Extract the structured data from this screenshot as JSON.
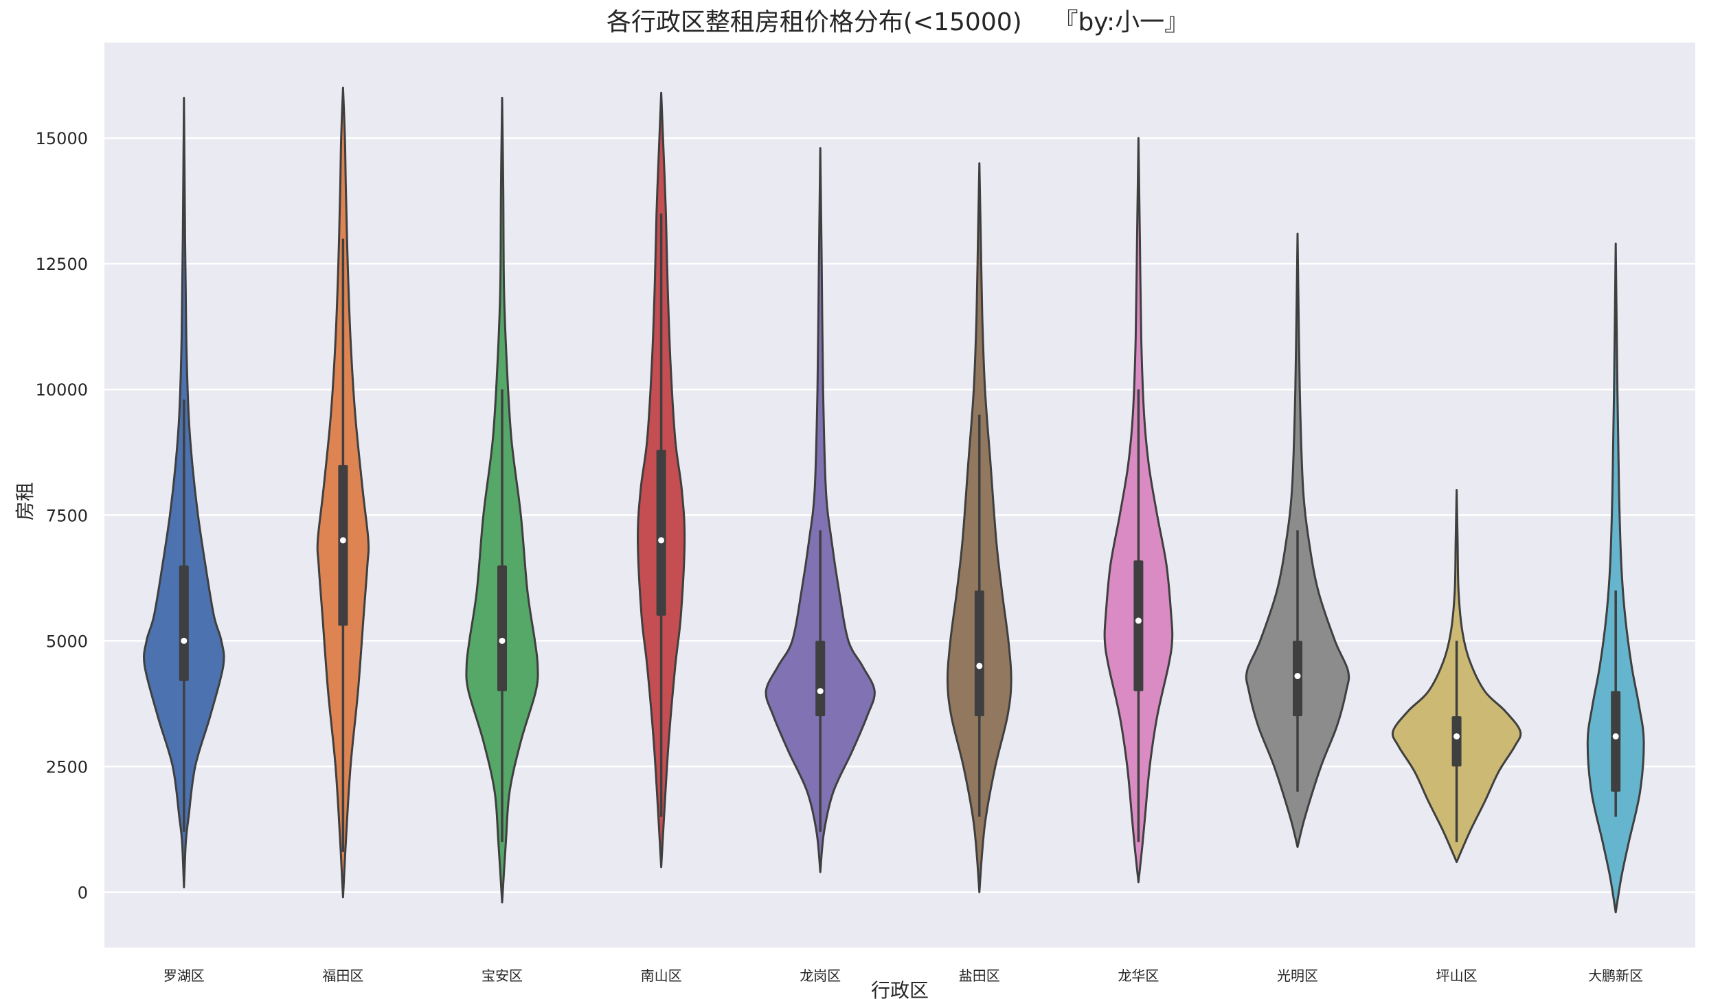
{
  "chart_data": {
    "type": "violin",
    "title": "各行政区整租房租价格分布(<15000)    『by:小一』",
    "xlabel": "行政区",
    "ylabel": "房租",
    "ylim": [
      -1100,
      16900
    ],
    "yticks": [
      0,
      2500,
      5000,
      7500,
      10000,
      12500,
      15000
    ],
    "grid": true,
    "legend": "none",
    "categories": [
      "罗湖区",
      "福田区",
      "宝安区",
      "南山区",
      "龙岗区",
      "盐田区",
      "龙华区",
      "光明区",
      "坪山区",
      "大鹏新区"
    ],
    "colors": [
      "#4c72b0",
      "#dd8452",
      "#55a868",
      "#c44e52",
      "#8172b3",
      "#937860",
      "#da8bc3",
      "#8c8c8c",
      "#ccb974",
      "#64b5cd"
    ],
    "series": [
      {
        "category": "罗湖区",
        "min": 100,
        "max": 15800,
        "q1": 4200,
        "median": 5000,
        "q3": 6500,
        "whisker_low": 1200,
        "whisker_high": 9800,
        "density": [
          [
            100,
            0.01
          ],
          [
            1000,
            0.02
          ],
          [
            1500,
            0.05
          ],
          [
            2500,
            0.12
          ],
          [
            3500,
            0.28
          ],
          [
            4500,
            0.42
          ],
          [
            5000,
            0.4
          ],
          [
            5500,
            0.32
          ],
          [
            6500,
            0.23
          ],
          [
            7500,
            0.15
          ],
          [
            8500,
            0.09
          ],
          [
            9500,
            0.05
          ],
          [
            11000,
            0.025
          ],
          [
            13000,
            0.012
          ],
          [
            15800,
            0.005
          ]
        ]
      },
      {
        "category": "福田区",
        "min": -100,
        "max": 16000,
        "q1": 5300,
        "median": 7000,
        "q3": 8500,
        "whisker_low": 800,
        "whisker_high": 13000,
        "density": [
          [
            -100,
            0.005
          ],
          [
            1000,
            0.03
          ],
          [
            2500,
            0.08
          ],
          [
            4000,
            0.16
          ],
          [
            5500,
            0.22
          ],
          [
            6500,
            0.26
          ],
          [
            7000,
            0.27
          ],
          [
            8000,
            0.21
          ],
          [
            9500,
            0.13
          ],
          [
            11000,
            0.08
          ],
          [
            12500,
            0.05
          ],
          [
            14000,
            0.03
          ],
          [
            15000,
            0.02
          ],
          [
            16000,
            0.005
          ]
        ]
      },
      {
        "category": "宝安区",
        "min": -200,
        "max": 15800,
        "q1": 4000,
        "median": 5000,
        "q3": 6500,
        "whisker_low": 1000,
        "whisker_high": 10000,
        "density": [
          [
            -200,
            0.005
          ],
          [
            1000,
            0.04
          ],
          [
            2000,
            0.08
          ],
          [
            3000,
            0.2
          ],
          [
            4000,
            0.36
          ],
          [
            4500,
            0.38
          ],
          [
            5000,
            0.35
          ],
          [
            6000,
            0.27
          ],
          [
            7500,
            0.2
          ],
          [
            9000,
            0.1
          ],
          [
            10500,
            0.05
          ],
          [
            12000,
            0.02
          ],
          [
            14000,
            0.012
          ],
          [
            15800,
            0.005
          ]
        ]
      },
      {
        "category": "南山区",
        "min": 500,
        "max": 15900,
        "q1": 5500,
        "median": 7000,
        "q3": 8800,
        "whisker_low": 1500,
        "whisker_high": 13500,
        "density": [
          [
            500,
            0.01
          ],
          [
            1500,
            0.03
          ],
          [
            3000,
            0.08
          ],
          [
            4500,
            0.15
          ],
          [
            5500,
            0.21
          ],
          [
            7000,
            0.25
          ],
          [
            8000,
            0.22
          ],
          [
            9000,
            0.15
          ],
          [
            10500,
            0.1
          ],
          [
            12000,
            0.07
          ],
          [
            13500,
            0.05
          ],
          [
            14500,
            0.03
          ],
          [
            15900,
            0.005
          ]
        ]
      },
      {
        "category": "龙岗区",
        "min": 400,
        "max": 14800,
        "q1": 3500,
        "median": 4000,
        "q3": 5000,
        "whisker_low": 1200,
        "whisker_high": 7200,
        "density": [
          [
            400,
            0.01
          ],
          [
            1200,
            0.04
          ],
          [
            2000,
            0.14
          ],
          [
            2800,
            0.34
          ],
          [
            3500,
            0.5
          ],
          [
            4000,
            0.58
          ],
          [
            4500,
            0.45
          ],
          [
            5000,
            0.3
          ],
          [
            6000,
            0.2
          ],
          [
            7000,
            0.12
          ],
          [
            8000,
            0.06
          ],
          [
            10000,
            0.03
          ],
          [
            12500,
            0.015
          ],
          [
            14800,
            0.005
          ]
        ]
      },
      {
        "category": "盐田区",
        "min": 0,
        "max": 14500,
        "q1": 3500,
        "median": 4500,
        "q3": 6000,
        "whisker_low": 1500,
        "whisker_high": 9500,
        "density": [
          [
            0,
            0.005
          ],
          [
            800,
            0.03
          ],
          [
            1500,
            0.07
          ],
          [
            2500,
            0.17
          ],
          [
            3500,
            0.3
          ],
          [
            4200,
            0.34
          ],
          [
            5000,
            0.31
          ],
          [
            6000,
            0.24
          ],
          [
            7000,
            0.18
          ],
          [
            8500,
            0.12
          ],
          [
            10000,
            0.06
          ],
          [
            11500,
            0.03
          ],
          [
            13000,
            0.015
          ],
          [
            14500,
            0.005
          ]
        ]
      },
      {
        "category": "龙华区",
        "min": 200,
        "max": 15000,
        "q1": 4000,
        "median": 5400,
        "q3": 6600,
        "whisker_low": 1000,
        "whisker_high": 10000,
        "density": [
          [
            200,
            0.01
          ],
          [
            900,
            0.04
          ],
          [
            1500,
            0.07
          ],
          [
            2500,
            0.12
          ],
          [
            3500,
            0.2
          ],
          [
            4500,
            0.32
          ],
          [
            5000,
            0.36
          ],
          [
            5500,
            0.35
          ],
          [
            6500,
            0.3
          ],
          [
            7500,
            0.2
          ],
          [
            8500,
            0.11
          ],
          [
            9500,
            0.06
          ],
          [
            11000,
            0.03
          ],
          [
            13000,
            0.015
          ],
          [
            15000,
            0.005
          ]
        ]
      },
      {
        "category": "光明区",
        "min": 900,
        "max": 13100,
        "q1": 3500,
        "median": 4300,
        "q3": 5000,
        "whisker_low": 2000,
        "whisker_high": 7200,
        "density": [
          [
            900,
            0.02
          ],
          [
            1500,
            0.08
          ],
          [
            2500,
            0.25
          ],
          [
            3300,
            0.42
          ],
          [
            4000,
            0.52
          ],
          [
            4400,
            0.54
          ],
          [
            5000,
            0.4
          ],
          [
            6000,
            0.22
          ],
          [
            7000,
            0.12
          ],
          [
            8000,
            0.06
          ],
          [
            9500,
            0.03
          ],
          [
            11000,
            0.015
          ],
          [
            13100,
            0.005
          ]
        ]
      },
      {
        "category": "坪山区",
        "min": 600,
        "max": 8000,
        "q1": 2500,
        "median": 3100,
        "q3": 3500,
        "whisker_low": 1000,
        "whisker_high": 5000,
        "density": [
          [
            600,
            0.02
          ],
          [
            1200,
            0.14
          ],
          [
            1800,
            0.3
          ],
          [
            2400,
            0.45
          ],
          [
            2900,
            0.62
          ],
          [
            3200,
            0.68
          ],
          [
            3600,
            0.52
          ],
          [
            4000,
            0.3
          ],
          [
            4600,
            0.14
          ],
          [
            5200,
            0.06
          ],
          [
            6000,
            0.02
          ],
          [
            7000,
            0.01
          ],
          [
            8000,
            0.005
          ]
        ]
      },
      {
        "category": "大鹏新区",
        "min": -400,
        "max": 12900,
        "q1": 2000,
        "median": 3100,
        "q3": 4000,
        "whisker_low": 1500,
        "whisker_high": 6000,
        "density": [
          [
            -400,
            0.01
          ],
          [
            300,
            0.06
          ],
          [
            1000,
            0.14
          ],
          [
            2000,
            0.26
          ],
          [
            3000,
            0.3
          ],
          [
            3700,
            0.25
          ],
          [
            4500,
            0.17
          ],
          [
            5500,
            0.1
          ],
          [
            6500,
            0.06
          ],
          [
            8000,
            0.035
          ],
          [
            10000,
            0.018
          ],
          [
            12900,
            0.005
          ]
        ]
      }
    ]
  }
}
